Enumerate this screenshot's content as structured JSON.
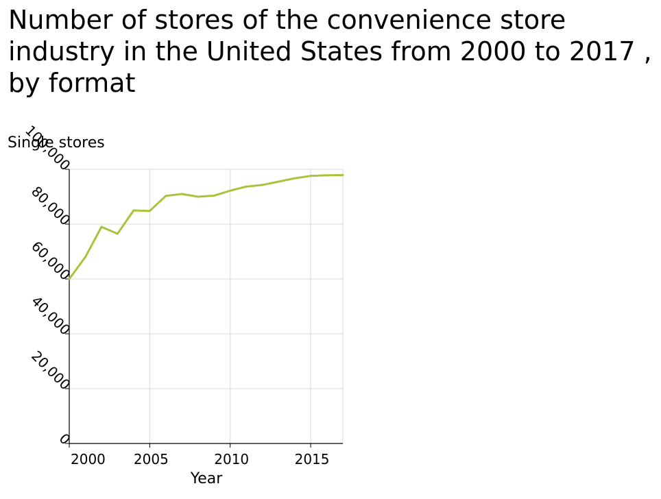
{
  "chart_data": {
    "type": "line",
    "title": "Number of stores of the convenience store industry in the United States from 2000 to 2017 , by format",
    "ylabel": "Single stores",
    "xlabel": "Year",
    "xlim": [
      2000,
      2017
    ],
    "ylim": [
      0,
      100000
    ],
    "x_ticks": [
      2000,
      2005,
      2010,
      2015
    ],
    "x_tick_labels": [
      "2000",
      "2005",
      "2010",
      "2015"
    ],
    "y_ticks": [
      0,
      20000,
      40000,
      60000,
      80000,
      100000
    ],
    "y_tick_labels": [
      "0",
      "20,000",
      "40,000",
      "60,000",
      "80,000",
      "100,000"
    ],
    "grid": true,
    "series": [
      {
        "color": "#a8c43c",
        "x": [
          2000,
          2001,
          2002,
          2003,
          2004,
          2005,
          2006,
          2007,
          2008,
          2009,
          2010,
          2011,
          2012,
          2013,
          2014,
          2015,
          2016,
          2017
        ],
        "values": [
          60000,
          68000,
          79000,
          76500,
          85000,
          84800,
          90300,
          91000,
          90000,
          90400,
          92200,
          93700,
          94300,
          95500,
          96700,
          97600,
          97800,
          97900
        ]
      }
    ]
  }
}
